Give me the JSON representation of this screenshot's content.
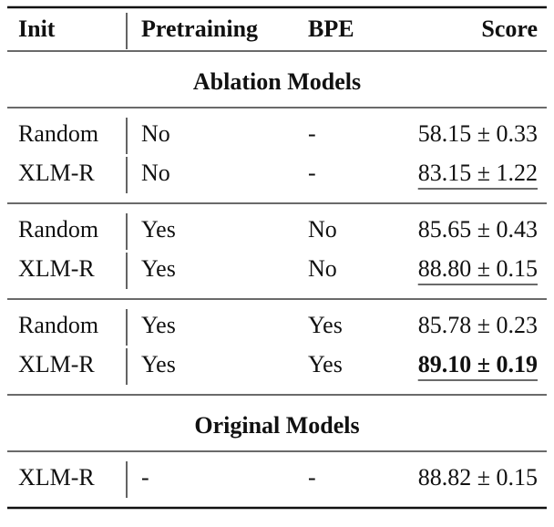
{
  "table": {
    "header": [
      "Init",
      "Pretraining",
      "BPE",
      "Score"
    ],
    "sections": [
      {
        "title": "Ablation Models",
        "groups": [
          [
            {
              "cells": [
                "Random",
                "No",
                "-",
                "58.15 ± 0.33"
              ],
              "underline": false,
              "bold": false
            },
            {
              "cells": [
                "XLM-R",
                "No",
                "-",
                "83.15 ± 1.22"
              ],
              "underline": true,
              "bold": false
            }
          ],
          [
            {
              "cells": [
                "Random",
                "Yes",
                "No",
                "85.65 ± 0.43"
              ],
              "underline": false,
              "bold": false
            },
            {
              "cells": [
                "XLM-R",
                "Yes",
                "No",
                "88.80 ± 0.15"
              ],
              "underline": true,
              "bold": false
            }
          ],
          [
            {
              "cells": [
                "Random",
                "Yes",
                "Yes",
                "85.78 ± 0.23"
              ],
              "underline": false,
              "bold": false
            },
            {
              "cells": [
                "XLM-R",
                "Yes",
                "Yes",
                "89.10 ± 0.19"
              ],
              "underline": true,
              "bold": true
            }
          ]
        ]
      },
      {
        "title": "Original Models",
        "groups": [
          [
            {
              "cells": [
                "XLM-R",
                "-",
                "-",
                "88.82 ± 0.15"
              ],
              "underline": false,
              "bold": false
            }
          ]
        ]
      }
    ]
  }
}
